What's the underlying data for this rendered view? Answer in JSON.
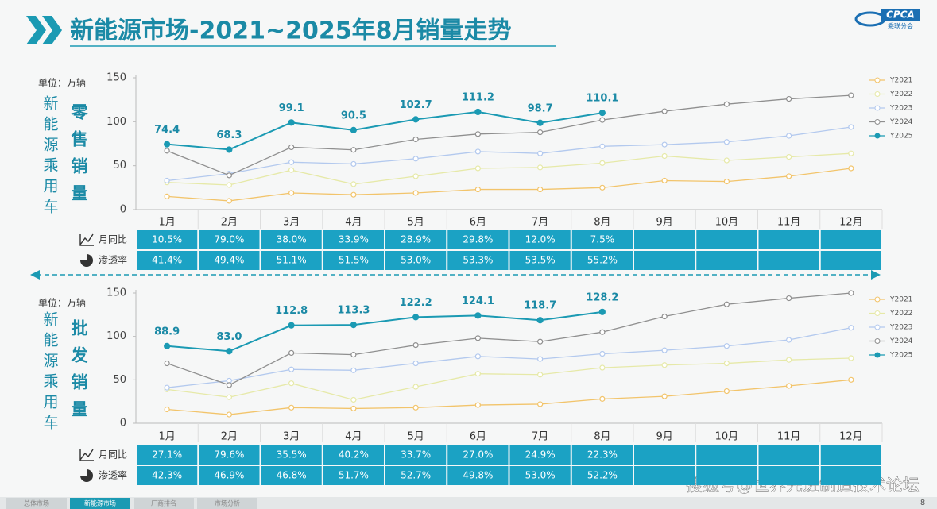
{
  "header": {
    "title": "新能源市场-2021~2025年8月销量走势",
    "logo": "CPCA",
    "logo_sub": "乘联分会"
  },
  "chart_data": [
    {
      "type": "line",
      "unit": "单位：万辆",
      "side_title": "新能源乘用车",
      "sales_label": "零售销量",
      "categories": [
        "1月",
        "2月",
        "3月",
        "4月",
        "5月",
        "6月",
        "7月",
        "8月",
        "9月",
        "10月",
        "11月",
        "12月"
      ],
      "ylim": [
        0,
        150
      ],
      "yticks": [
        0,
        50,
        100,
        150
      ],
      "grid": false,
      "legend": "right",
      "series": [
        {
          "name": "Y2021",
          "color": "#f2c46b",
          "values": [
            15,
            10,
            19,
            17,
            19,
            23,
            23,
            25,
            33,
            32,
            38,
            47
          ]
        },
        {
          "name": "Y2022",
          "color": "#e6e9a8",
          "values": [
            31,
            28,
            45,
            29,
            38,
            47,
            48,
            53,
            61,
            56,
            60,
            64
          ]
        },
        {
          "name": "Y2023",
          "color": "#b3c9ee",
          "values": [
            33,
            41,
            54,
            52,
            58,
            66,
            64,
            72,
            74,
            77,
            84,
            94
          ]
        },
        {
          "name": "Y2024",
          "color": "#8f8f8f",
          "values": [
            67,
            39,
            71,
            68,
            80,
            86,
            88,
            102,
            112,
            120,
            126,
            130
          ]
        },
        {
          "name": "Y2025",
          "color": "#1b9ab3",
          "values": [
            74.4,
            68.3,
            99.1,
            90.5,
            102.7,
            111.2,
            98.7,
            110.1,
            null,
            null,
            null,
            null
          ],
          "data_labels": true
        }
      ],
      "table": [
        {
          "label": "月同比",
          "values": [
            "10.5%",
            "79.0%",
            "38.0%",
            "33.9%",
            "28.9%",
            "29.8%",
            "12.0%",
            "7.5%"
          ]
        },
        {
          "label": "渗透率",
          "values": [
            "41.4%",
            "49.4%",
            "51.1%",
            "51.5%",
            "53.0%",
            "53.3%",
            "53.5%",
            "55.2%"
          ]
        }
      ]
    },
    {
      "type": "line",
      "unit": "单位：万辆",
      "side_title": "新能源乘用车",
      "sales_label": "批发销量",
      "categories": [
        "1月",
        "2月",
        "3月",
        "4月",
        "5月",
        "6月",
        "7月",
        "8月",
        "9月",
        "10月",
        "11月",
        "12月"
      ],
      "ylim": [
        0,
        150
      ],
      "yticks": [
        0,
        50,
        100,
        150
      ],
      "grid": false,
      "legend": "right",
      "series": [
        {
          "name": "Y2021",
          "color": "#f2c46b",
          "values": [
            16,
            10,
            18,
            17,
            18,
            21,
            22,
            28,
            31,
            37,
            43,
            50
          ]
        },
        {
          "name": "Y2022",
          "color": "#e6e9a8",
          "values": [
            39,
            30,
            46,
            27,
            42,
            57,
            56,
            64,
            67,
            69,
            73,
            75
          ]
        },
        {
          "name": "Y2023",
          "color": "#b3c9ee",
          "values": [
            41,
            49,
            62,
            61,
            69,
            77,
            74,
            80,
            84,
            89,
            96,
            110
          ]
        },
        {
          "name": "Y2024",
          "color": "#8f8f8f",
          "values": [
            69,
            44,
            81,
            79,
            90,
            98,
            94,
            105,
            123,
            137,
            144,
            150
          ]
        },
        {
          "name": "Y2025",
          "color": "#1b9ab3",
          "values": [
            88.9,
            83,
            112.8,
            113.3,
            122.2,
            124.1,
            118.7,
            128.2,
            null,
            null,
            null,
            null
          ],
          "value_labels": [
            "88.9",
            "83.0",
            "112.8",
            "113.3",
            "122.2",
            "124.1",
            "118.7",
            "128.2",
            null,
            null,
            null,
            null
          ],
          "data_labels": true
        }
      ],
      "table": [
        {
          "label": "月同比",
          "values": [
            "27.1%",
            "79.6%",
            "35.5%",
            "40.2%",
            "33.7%",
            "27.0%",
            "24.9%",
            "22.3%"
          ]
        },
        {
          "label": "渗透率",
          "values": [
            "42.3%",
            "46.9%",
            "46.8%",
            "51.7%",
            "52.7%",
            "49.8%",
            "53.0%",
            "52.2%"
          ]
        }
      ]
    }
  ],
  "footer": {
    "tabs": [
      "总体市场",
      "新能源市场",
      "厂商排名",
      "市场分析"
    ],
    "watermark": "搜狐号@世界先进制造技术论坛",
    "page": "8"
  }
}
